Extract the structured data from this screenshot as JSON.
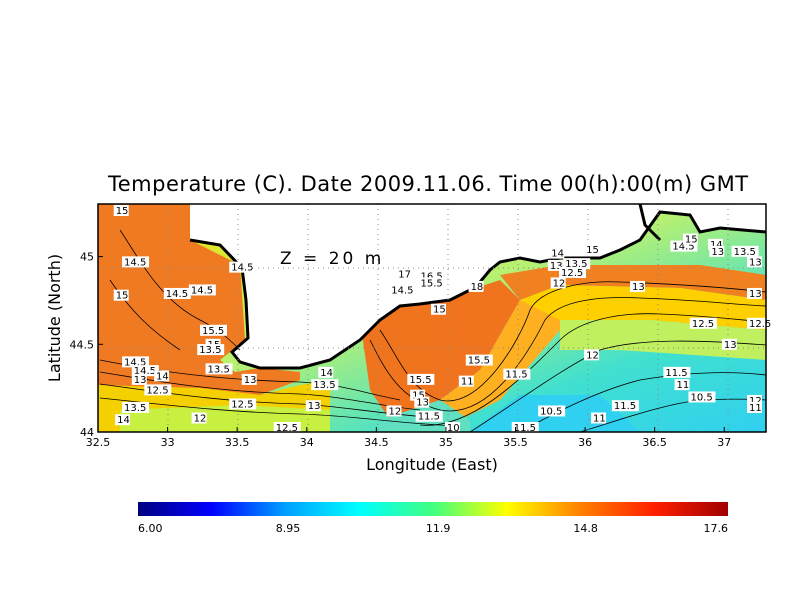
{
  "title": "Temperature (C). Date 2009.11.06. Time 00(h):00(m) GMT",
  "annotation": "Z = 20 m",
  "xlabel": "Longitude (East)",
  "ylabel": "Latitude (North)",
  "x_ticks": [
    "32.5",
    "33",
    "33.5",
    "34",
    "34.5",
    "35",
    "35.5",
    "36",
    "36.5",
    "37"
  ],
  "y_ticks": [
    "44",
    "44.5",
    "45"
  ],
  "colorbar": {
    "ticks": [
      "6.00",
      "8.95",
      "11.9",
      "14.8",
      "17.6"
    ],
    "colors": [
      "#000080",
      "#0000ff",
      "#00a0ff",
      "#00ffff",
      "#40ff80",
      "#ffff00",
      "#ff8000",
      "#ff2000",
      "#a00000"
    ]
  },
  "chart_data": {
    "type": "heatmap",
    "title": "Temperature (C). Date 2009.11.06. Time 00(h):00(m) GMT",
    "xlabel": "Longitude (East)",
    "ylabel": "Latitude (North)",
    "xlim": [
      32.5,
      37.3
    ],
    "ylim": [
      44.0,
      45.3
    ],
    "vmin": 6.0,
    "vmax": 17.6,
    "contour_labels": [
      {
        "x": 32.62,
        "y": 45.25,
        "v": "15"
      },
      {
        "x": 32.68,
        "y": 44.95,
        "v": "14.5"
      },
      {
        "x": 33.45,
        "y": 44.92,
        "v": "14.5"
      },
      {
        "x": 32.62,
        "y": 44.76,
        "v": "15"
      },
      {
        "x": 32.98,
        "y": 44.77,
        "v": "14.5"
      },
      {
        "x": 33.16,
        "y": 44.79,
        "v": "14.5"
      },
      {
        "x": 33.24,
        "y": 44.56,
        "v": "15.5"
      },
      {
        "x": 33.28,
        "y": 44.48,
        "v": "15"
      },
      {
        "x": 33.22,
        "y": 44.45,
        "v": "13.5"
      },
      {
        "x": 33.28,
        "y": 44.34,
        "v": "13.5"
      },
      {
        "x": 33.54,
        "y": 44.28,
        "v": "13"
      },
      {
        "x": 32.68,
        "y": 44.38,
        "v": "14.5"
      },
      {
        "x": 32.75,
        "y": 44.33,
        "v": "14.5"
      },
      {
        "x": 32.91,
        "y": 44.3,
        "v": "14"
      },
      {
        "x": 32.75,
        "y": 44.28,
        "v": "13"
      },
      {
        "x": 32.84,
        "y": 44.22,
        "v": "12.5"
      },
      {
        "x": 32.68,
        "y": 44.12,
        "v": "13.5"
      },
      {
        "x": 32.63,
        "y": 44.05,
        "v": "14"
      },
      {
        "x": 33.45,
        "y": 44.14,
        "v": "12.5"
      },
      {
        "x": 33.18,
        "y": 44.06,
        "v": "12"
      },
      {
        "x": 33.77,
        "y": 44.0,
        "v": "12.5"
      },
      {
        "x": 34.09,
        "y": 44.32,
        "v": "14"
      },
      {
        "x": 34.04,
        "y": 44.25,
        "v": "13.5"
      },
      {
        "x": 34.0,
        "y": 44.13,
        "v": "13"
      },
      {
        "x": 34.81,
        "y": 44.87,
        "v": "16.5"
      },
      {
        "x": 34.65,
        "y": 44.88,
        "v": "17"
      },
      {
        "x": 34.81,
        "y": 44.83,
        "v": "15.5"
      },
      {
        "x": 34.6,
        "y": 44.79,
        "v": "14.5"
      },
      {
        "x": 34.9,
        "y": 44.68,
        "v": "15"
      },
      {
        "x": 35.17,
        "y": 44.81,
        "v": "18"
      },
      {
        "x": 35.15,
        "y": 44.39,
        "v": "15.5"
      },
      {
        "x": 34.73,
        "y": 44.28,
        "v": "15.5"
      },
      {
        "x": 34.75,
        "y": 44.19,
        "v": "15"
      },
      {
        "x": 34.78,
        "y": 44.15,
        "v": "13"
      },
      {
        "x": 34.58,
        "y": 44.1,
        "v": "12"
      },
      {
        "x": 34.79,
        "y": 44.07,
        "v": "11.5"
      },
      {
        "x": 35.0,
        "y": 44.0,
        "v": "10"
      },
      {
        "x": 35.1,
        "y": 44.27,
        "v": "11"
      },
      {
        "x": 35.42,
        "y": 44.31,
        "v": "11.5"
      },
      {
        "x": 35.48,
        "y": 44.0,
        "v": "11.5"
      },
      {
        "x": 35.67,
        "y": 44.1,
        "v": "10.5"
      },
      {
        "x": 35.75,
        "y": 45.0,
        "v": "14"
      },
      {
        "x": 36.0,
        "y": 45.02,
        "v": "15"
      },
      {
        "x": 35.74,
        "y": 44.93,
        "v": "13"
      },
      {
        "x": 35.85,
        "y": 44.94,
        "v": "13.5"
      },
      {
        "x": 35.82,
        "y": 44.89,
        "v": "12.5"
      },
      {
        "x": 35.76,
        "y": 44.83,
        "v": "12"
      },
      {
        "x": 36.0,
        "y": 44.42,
        "v": "12"
      },
      {
        "x": 36.33,
        "y": 44.81,
        "v": "13"
      },
      {
        "x": 36.62,
        "y": 45.04,
        "v": "14.5"
      },
      {
        "x": 36.71,
        "y": 45.08,
        "v": "15"
      },
      {
        "x": 36.89,
        "y": 45.05,
        "v": "14"
      },
      {
        "x": 36.9,
        "y": 45.01,
        "v": "13"
      },
      {
        "x": 37.06,
        "y": 45.01,
        "v": "13.5"
      },
      {
        "x": 37.25,
        "y": 44.95,
        "v": "13"
      },
      {
        "x": 37.25,
        "y": 44.77,
        "v": "13"
      },
      {
        "x": 36.76,
        "y": 44.6,
        "v": "12.5"
      },
      {
        "x": 37.26,
        "y": 44.6,
        "v": "12.5"
      },
      {
        "x": 36.99,
        "y": 44.48,
        "v": "13"
      },
      {
        "x": 36.57,
        "y": 44.32,
        "v": "11.5"
      },
      {
        "x": 36.65,
        "y": 44.25,
        "v": "11"
      },
      {
        "x": 36.75,
        "y": 44.18,
        "v": "10.5"
      },
      {
        "x": 37.21,
        "y": 44.16,
        "v": "12"
      },
      {
        "x": 37.38,
        "y": 44.12,
        "v": "11"
      },
      {
        "x": 36.2,
        "y": 44.13,
        "v": "11.5"
      },
      {
        "x": 36.05,
        "y": 44.06,
        "v": "11"
      }
    ]
  }
}
